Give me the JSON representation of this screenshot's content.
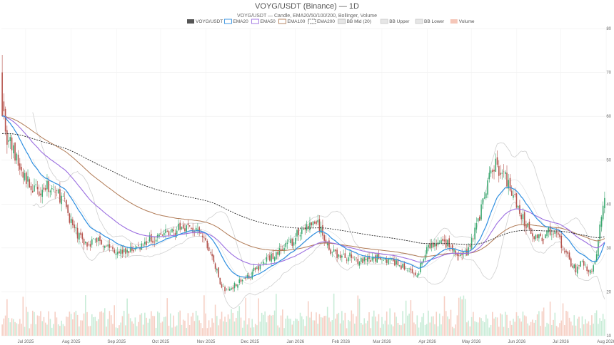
{
  "chart_data": {
    "type": "candlestick",
    "title": "VOYG/USDT (Binance) — 1D",
    "subtitle": "VOYG/USDT — Candle, EMA20/50/100/200, Bollinger, Volume",
    "legend": [
      {
        "name": "VOYG/USDT",
        "color": "#555555",
        "style": "fill"
      },
      {
        "name": "EMA20",
        "color": "#2f8fe0",
        "style": "line"
      },
      {
        "name": "EMA50",
        "color": "#9b6ee0",
        "style": "line"
      },
      {
        "name": "EMA100",
        "color": "#b07a55",
        "style": "line"
      },
      {
        "name": "EMA200",
        "color": "#222222",
        "style": "dash"
      },
      {
        "name": "BB Mid (20)",
        "color": "#bbbbbb",
        "style": "line"
      },
      {
        "name": "BB Upper",
        "color": "#cccccc",
        "style": "line"
      },
      {
        "name": "BB Lower",
        "color": "#cccccc",
        "style": "line"
      },
      {
        "name": "Volume",
        "color": "#f5c6b8",
        "style": "fill"
      }
    ],
    "x_ticks": [
      "Jul 2025",
      "Aug 2025",
      "Sep 2025",
      "Oct 2025",
      "Nov 2025",
      "Dec 2025",
      "Jan 2026",
      "Feb 2026",
      "Mar 2026",
      "Apr 2026",
      "May 2026",
      "Jun 2026",
      "Jul 2026",
      "Aug 2026"
    ],
    "y_ticks": [
      10,
      20,
      30,
      40,
      50,
      60,
      70,
      80
    ],
    "ylim": [
      10,
      80
    ],
    "legend_position": "top",
    "grid": true,
    "colors": {
      "up": "#3aa86f",
      "down": "#b5524b",
      "volume_up": "#c8ecd7",
      "volume_down": "#f6cfc4"
    },
    "close_keypoints": [
      [
        0,
        66
      ],
      [
        2,
        56
      ],
      [
        6,
        53
      ],
      [
        12,
        47
      ],
      [
        20,
        43
      ],
      [
        30,
        44
      ],
      [
        38,
        41
      ],
      [
        45,
        34
      ],
      [
        52,
        31
      ],
      [
        60,
        32
      ],
      [
        68,
        30
      ],
      [
        76,
        29
      ],
      [
        84,
        30
      ],
      [
        92,
        32
      ],
      [
        100,
        33
      ],
      [
        108,
        34
      ],
      [
        114,
        35
      ],
      [
        120,
        34
      ],
      [
        126,
        32
      ],
      [
        132,
        27
      ],
      [
        136,
        22
      ],
      [
        140,
        20
      ],
      [
        146,
        22
      ],
      [
        152,
        23
      ],
      [
        158,
        25
      ],
      [
        164,
        27
      ],
      [
        172,
        29
      ],
      [
        180,
        31
      ],
      [
        186,
        34
      ],
      [
        192,
        35
      ],
      [
        196,
        36
      ],
      [
        200,
        33
      ],
      [
        206,
        29
      ],
      [
        212,
        28
      ],
      [
        218,
        28
      ],
      [
        224,
        27
      ],
      [
        230,
        27
      ],
      [
        236,
        28
      ],
      [
        242,
        27
      ],
      [
        248,
        26
      ],
      [
        254,
        25
      ],
      [
        258,
        23
      ],
      [
        262,
        27
      ],
      [
        266,
        30
      ],
      [
        272,
        31
      ],
      [
        278,
        31
      ],
      [
        284,
        28
      ],
      [
        290,
        29
      ],
      [
        296,
        35
      ],
      [
        300,
        40
      ],
      [
        304,
        46
      ],
      [
        308,
        49
      ],
      [
        312,
        47
      ],
      [
        316,
        45
      ],
      [
        320,
        41
      ],
      [
        324,
        37
      ],
      [
        328,
        35
      ],
      [
        332,
        33
      ],
      [
        336,
        32
      ],
      [
        340,
        34
      ],
      [
        346,
        33
      ],
      [
        350,
        30
      ],
      [
        354,
        27
      ],
      [
        358,
        25
      ],
      [
        362,
        27
      ],
      [
        366,
        24
      ],
      [
        370,
        26
      ],
      [
        374,
        38
      ],
      [
        376,
        42
      ]
    ],
    "n_days": 377
  }
}
